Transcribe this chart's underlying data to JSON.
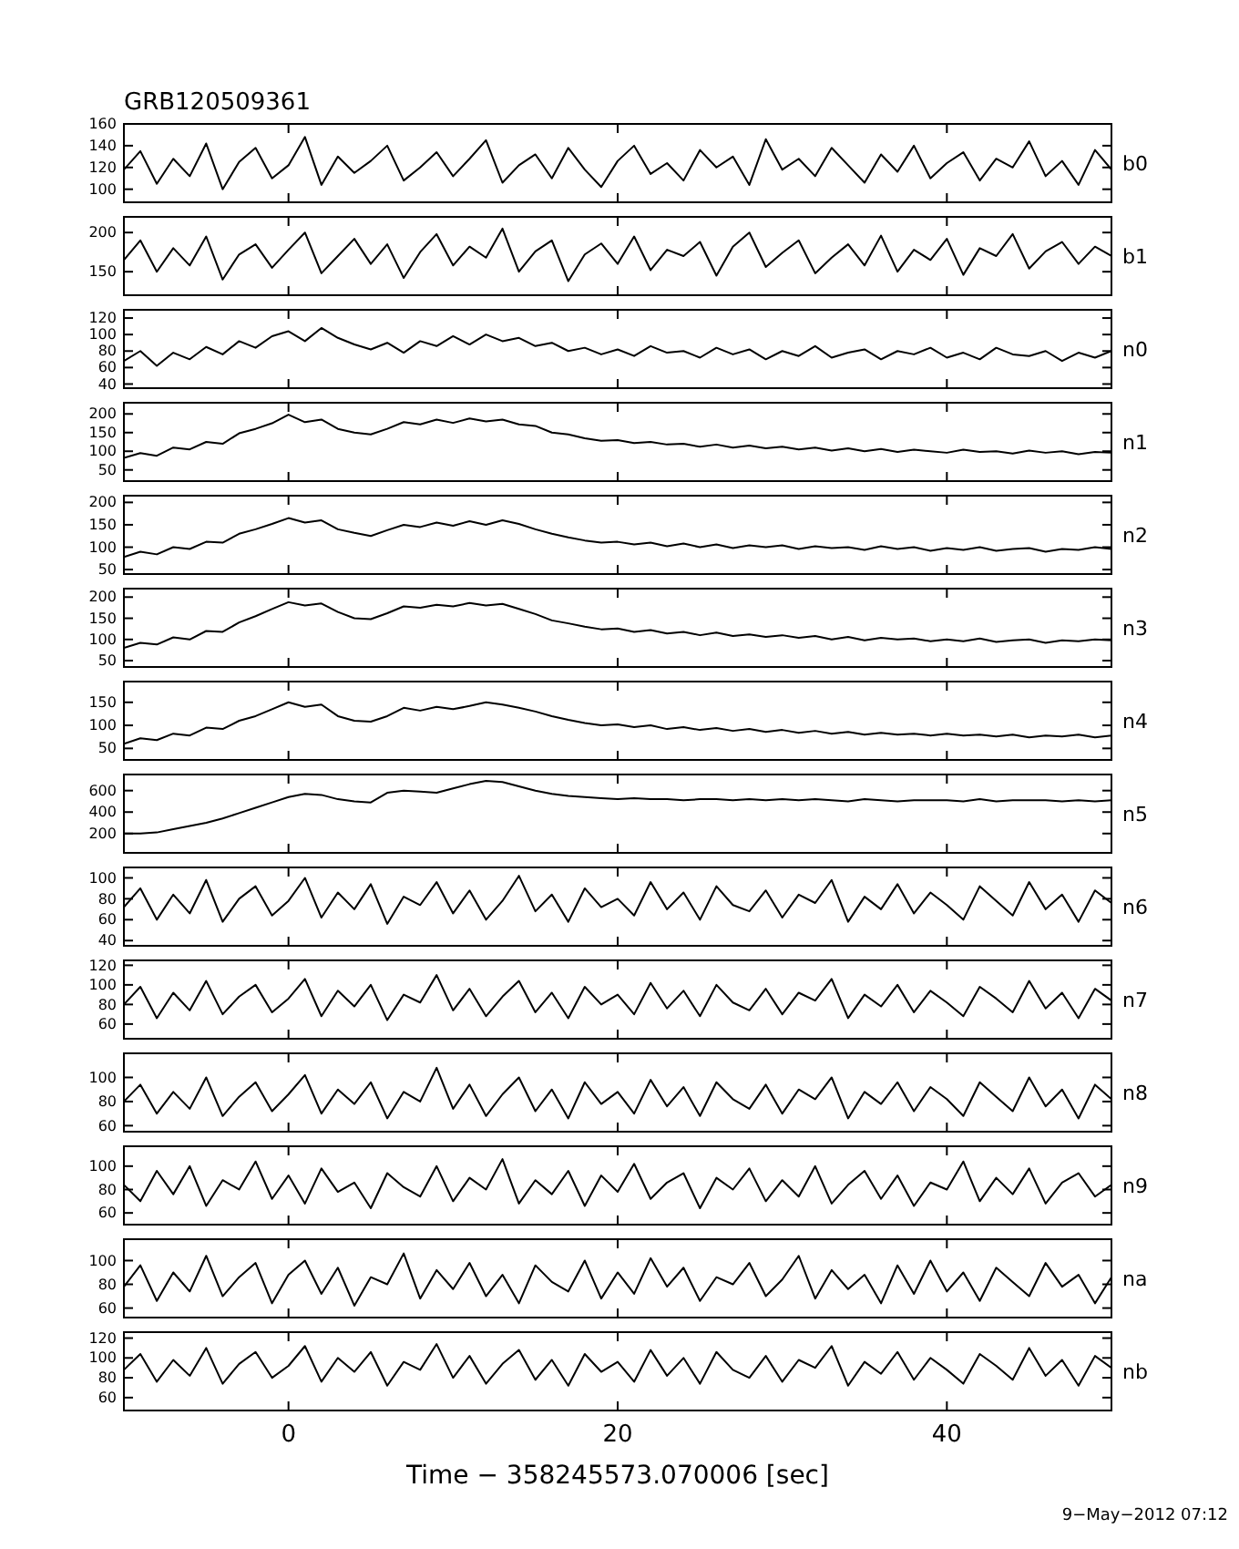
{
  "chart_data": [
    {
      "type": "line",
      "title": "GRB120509361",
      "x": [
        -10,
        -9,
        -8,
        -7,
        -6,
        -5,
        -4,
        -3,
        -2,
        -1,
        0,
        1,
        2,
        3,
        4,
        5,
        6,
        7,
        8,
        9,
        10,
        11,
        12,
        13,
        14,
        15,
        16,
        17,
        18,
        19,
        20,
        21,
        22,
        23,
        24,
        25,
        26,
        27,
        28,
        29,
        30,
        31,
        32,
        33,
        34,
        35,
        36,
        37,
        38,
        39,
        40,
        41,
        42,
        43,
        44,
        45,
        46,
        47,
        48,
        49,
        50
      ],
      "xlim": [
        -10,
        50
      ],
      "xticks": [
        0,
        20,
        40
      ],
      "ylim": [
        88,
        160
      ],
      "yticks": [
        100,
        120,
        140,
        160
      ],
      "tick_labels": "y",
      "series": [
        {
          "name": "b0",
          "color": "#000000",
          "values": [
            118,
            135,
            105,
            128,
            112,
            142,
            100,
            125,
            138,
            110,
            122,
            148,
            104,
            130,
            115,
            126,
            140,
            108,
            120,
            134,
            112,
            128,
            145,
            106,
            122,
            132,
            110,
            138,
            118,
            102,
            126,
            140,
            114,
            124,
            108,
            136,
            120,
            130,
            104,
            146,
            118,
            128,
            112,
            138,
            122,
            106,
            132,
            116,
            140,
            110,
            124,
            134,
            108,
            128,
            120,
            144,
            112,
            126,
            104,
            136,
            118
          ]
        }
      ]
    },
    {
      "type": "line",
      "x": [
        -10,
        -9,
        -8,
        -7,
        -6,
        -5,
        -4,
        -3,
        -2,
        -1,
        0,
        1,
        2,
        3,
        4,
        5,
        6,
        7,
        8,
        9,
        10,
        11,
        12,
        13,
        14,
        15,
        16,
        17,
        18,
        19,
        20,
        21,
        22,
        23,
        24,
        25,
        26,
        27,
        28,
        29,
        30,
        31,
        32,
        33,
        34,
        35,
        36,
        37,
        38,
        39,
        40,
        41,
        42,
        43,
        44,
        45,
        46,
        47,
        48,
        49,
        50
      ],
      "xlim": [
        -10,
        50
      ],
      "xticks": [
        0,
        20,
        40
      ],
      "ylim": [
        120,
        220
      ],
      "yticks": [
        150,
        200
      ],
      "tick_labels": "y",
      "series": [
        {
          "name": "b1",
          "color": "#000000",
          "values": [
            165,
            190,
            150,
            180,
            158,
            195,
            140,
            172,
            185,
            155,
            178,
            200,
            148,
            170,
            192,
            160,
            185,
            142,
            175,
            198,
            158,
            182,
            168,
            205,
            150,
            176,
            190,
            138,
            172,
            186,
            160,
            195,
            152,
            178,
            170,
            188,
            145,
            182,
            200,
            156,
            174,
            190,
            148,
            168,
            185,
            158,
            196,
            150,
            178,
            165,
            192,
            146,
            180,
            170,
            198,
            154,
            176,
            188,
            160,
            182,
            170
          ]
        }
      ]
    },
    {
      "type": "line",
      "x": [
        -10,
        -9,
        -8,
        -7,
        -6,
        -5,
        -4,
        -3,
        -2,
        -1,
        0,
        1,
        2,
        3,
        4,
        5,
        6,
        7,
        8,
        9,
        10,
        11,
        12,
        13,
        14,
        15,
        16,
        17,
        18,
        19,
        20,
        21,
        22,
        23,
        24,
        25,
        26,
        27,
        28,
        29,
        30,
        31,
        32,
        33,
        34,
        35,
        36,
        37,
        38,
        39,
        40,
        41,
        42,
        43,
        44,
        45,
        46,
        47,
        48,
        49,
        50
      ],
      "xlim": [
        -10,
        50
      ],
      "xticks": [
        0,
        20,
        40
      ],
      "ylim": [
        35,
        130
      ],
      "yticks": [
        40,
        60,
        80,
        100,
        120
      ],
      "tick_labels": "y",
      "series": [
        {
          "name": "n0",
          "color": "#000000",
          "values": [
            68,
            80,
            62,
            78,
            70,
            85,
            76,
            92,
            84,
            98,
            104,
            92,
            108,
            96,
            88,
            82,
            90,
            78,
            92,
            86,
            98,
            88,
            100,
            92,
            96,
            86,
            90,
            80,
            84,
            76,
            82,
            74,
            86,
            78,
            80,
            72,
            84,
            76,
            82,
            70,
            80,
            74,
            86,
            72,
            78,
            82,
            70,
            80,
            76,
            84,
            72,
            78,
            70,
            84,
            76,
            74,
            80,
            68,
            78,
            72,
            80
          ]
        }
      ]
    },
    {
      "type": "line",
      "x": [
        -10,
        -9,
        -8,
        -7,
        -6,
        -5,
        -4,
        -3,
        -2,
        -1,
        0,
        1,
        2,
        3,
        4,
        5,
        6,
        7,
        8,
        9,
        10,
        11,
        12,
        13,
        14,
        15,
        16,
        17,
        18,
        19,
        20,
        21,
        22,
        23,
        24,
        25,
        26,
        27,
        28,
        29,
        30,
        31,
        32,
        33,
        34,
        35,
        36,
        37,
        38,
        39,
        40,
        41,
        42,
        43,
        44,
        45,
        46,
        47,
        48,
        49,
        50
      ],
      "xlim": [
        -10,
        50
      ],
      "xticks": [
        0,
        20,
        40
      ],
      "ylim": [
        20,
        230
      ],
      "yticks": [
        50,
        100,
        150,
        200
      ],
      "tick_labels": "y",
      "series": [
        {
          "name": "n1",
          "color": "#000000",
          "values": [
            82,
            95,
            88,
            110,
            105,
            125,
            120,
            148,
            160,
            175,
            198,
            178,
            185,
            160,
            150,
            145,
            160,
            178,
            172,
            185,
            176,
            188,
            180,
            185,
            172,
            168,
            150,
            145,
            135,
            128,
            130,
            122,
            125,
            118,
            120,
            112,
            118,
            110,
            115,
            108,
            112,
            105,
            110,
            102,
            108,
            100,
            106,
            98,
            104,
            100,
            96,
            104,
            98,
            100,
            94,
            102,
            96,
            100,
            92,
            98,
            96
          ]
        }
      ]
    },
    {
      "type": "line",
      "x": [
        -10,
        -9,
        -8,
        -7,
        -6,
        -5,
        -4,
        -3,
        -2,
        -1,
        0,
        1,
        2,
        3,
        4,
        5,
        6,
        7,
        8,
        9,
        10,
        11,
        12,
        13,
        14,
        15,
        16,
        17,
        18,
        19,
        20,
        21,
        22,
        23,
        24,
        25,
        26,
        27,
        28,
        29,
        30,
        31,
        32,
        33,
        34,
        35,
        36,
        37,
        38,
        39,
        40,
        41,
        42,
        43,
        44,
        45,
        46,
        47,
        48,
        49,
        50
      ],
      "xlim": [
        -10,
        50
      ],
      "xticks": [
        0,
        20,
        40
      ],
      "ylim": [
        40,
        215
      ],
      "yticks": [
        50,
        100,
        150,
        200
      ],
      "tick_labels": "y",
      "series": [
        {
          "name": "n2",
          "color": "#000000",
          "values": [
            78,
            90,
            84,
            100,
            96,
            112,
            110,
            130,
            140,
            152,
            165,
            155,
            160,
            140,
            132,
            125,
            138,
            150,
            145,
            155,
            148,
            158,
            150,
            160,
            152,
            140,
            130,
            122,
            115,
            110,
            112,
            106,
            110,
            102,
            108,
            100,
            106,
            98,
            104,
            100,
            104,
            96,
            102,
            98,
            100,
            94,
            102,
            96,
            100,
            92,
            98,
            94,
            100,
            92,
            96,
            98,
            90,
            96,
            94,
            100,
            96
          ]
        }
      ]
    },
    {
      "type": "line",
      "x": [
        -10,
        -9,
        -8,
        -7,
        -6,
        -5,
        -4,
        -3,
        -2,
        -1,
        0,
        1,
        2,
        3,
        4,
        5,
        6,
        7,
        8,
        9,
        10,
        11,
        12,
        13,
        14,
        15,
        16,
        17,
        18,
        19,
        20,
        21,
        22,
        23,
        24,
        25,
        26,
        27,
        28,
        29,
        30,
        31,
        32,
        33,
        34,
        35,
        36,
        37,
        38,
        39,
        40,
        41,
        42,
        43,
        44,
        45,
        46,
        47,
        48,
        49,
        50
      ],
      "xlim": [
        -10,
        50
      ],
      "xticks": [
        0,
        20,
        40
      ],
      "ylim": [
        35,
        220
      ],
      "yticks": [
        50,
        100,
        150,
        200
      ],
      "tick_labels": "y",
      "series": [
        {
          "name": "n3",
          "color": "#000000",
          "values": [
            80,
            92,
            88,
            105,
            100,
            120,
            118,
            140,
            155,
            172,
            188,
            180,
            185,
            165,
            150,
            148,
            162,
            178,
            175,
            182,
            178,
            186,
            180,
            184,
            172,
            160,
            145,
            138,
            130,
            124,
            126,
            118,
            122,
            114,
            118,
            110,
            116,
            108,
            112,
            106,
            110,
            104,
            108,
            100,
            106,
            98,
            104,
            100,
            102,
            96,
            100,
            96,
            102,
            94,
            98,
            100,
            92,
            98,
            96,
            100,
            98
          ]
        }
      ]
    },
    {
      "type": "line",
      "x": [
        -10,
        -9,
        -8,
        -7,
        -6,
        -5,
        -4,
        -3,
        -2,
        -1,
        0,
        1,
        2,
        3,
        4,
        5,
        6,
        7,
        8,
        9,
        10,
        11,
        12,
        13,
        14,
        15,
        16,
        17,
        18,
        19,
        20,
        21,
        22,
        23,
        24,
        25,
        26,
        27,
        28,
        29,
        30,
        31,
        32,
        33,
        34,
        35,
        36,
        37,
        38,
        39,
        40,
        41,
        42,
        43,
        44,
        45,
        46,
        47,
        48,
        49,
        50
      ],
      "xlim": [
        -10,
        50
      ],
      "xticks": [
        0,
        20,
        40
      ],
      "ylim": [
        25,
        195
      ],
      "yticks": [
        50,
        100,
        150
      ],
      "tick_labels": "y",
      "series": [
        {
          "name": "n4",
          "color": "#000000",
          "values": [
            60,
            72,
            68,
            82,
            78,
            95,
            92,
            110,
            120,
            135,
            150,
            140,
            145,
            120,
            110,
            108,
            120,
            138,
            132,
            140,
            135,
            142,
            150,
            145,
            138,
            130,
            120,
            112,
            105,
            100,
            102,
            96,
            100,
            92,
            96,
            90,
            94,
            88,
            92,
            86,
            90,
            84,
            88,
            82,
            86,
            80,
            84,
            80,
            82,
            78,
            82,
            78,
            80,
            76,
            80,
            74,
            78,
            76,
            80,
            74,
            78
          ]
        }
      ]
    },
    {
      "type": "line",
      "x": [
        -10,
        -9,
        -8,
        -7,
        -6,
        -5,
        -4,
        -3,
        -2,
        -1,
        0,
        1,
        2,
        3,
        4,
        5,
        6,
        7,
        8,
        9,
        10,
        11,
        12,
        13,
        14,
        15,
        16,
        17,
        18,
        19,
        20,
        21,
        22,
        23,
        24,
        25,
        26,
        27,
        28,
        29,
        30,
        31,
        32,
        33,
        34,
        35,
        36,
        37,
        38,
        39,
        40,
        41,
        42,
        43,
        44,
        45,
        46,
        47,
        48,
        49,
        50
      ],
      "xlim": [
        -10,
        50
      ],
      "xticks": [
        0,
        20,
        40
      ],
      "ylim": [
        20,
        750
      ],
      "yticks": [
        200,
        400,
        600
      ],
      "tick_labels": "y",
      "series": [
        {
          "name": "n5",
          "color": "#000000",
          "values": [
            200,
            200,
            210,
            240,
            270,
            300,
            340,
            390,
            440,
            490,
            540,
            570,
            560,
            520,
            500,
            490,
            580,
            600,
            590,
            580,
            620,
            660,
            690,
            680,
            640,
            600,
            570,
            550,
            540,
            530,
            520,
            530,
            520,
            520,
            510,
            520,
            520,
            510,
            520,
            510,
            520,
            510,
            520,
            510,
            500,
            520,
            510,
            500,
            510,
            510,
            510,
            500,
            520,
            500,
            510,
            510,
            510,
            500,
            510,
            500,
            510
          ]
        }
      ]
    },
    {
      "type": "line",
      "x": [
        -10,
        -9,
        -8,
        -7,
        -6,
        -5,
        -4,
        -3,
        -2,
        -1,
        0,
        1,
        2,
        3,
        4,
        5,
        6,
        7,
        8,
        9,
        10,
        11,
        12,
        13,
        14,
        15,
        16,
        17,
        18,
        19,
        20,
        21,
        22,
        23,
        24,
        25,
        26,
        27,
        28,
        29,
        30,
        31,
        32,
        33,
        34,
        35,
        36,
        37,
        38,
        39,
        40,
        41,
        42,
        43,
        44,
        45,
        46,
        47,
        48,
        49,
        50
      ],
      "xlim": [
        -10,
        50
      ],
      "xticks": [
        0,
        20,
        40
      ],
      "ylim": [
        35,
        110
      ],
      "yticks": [
        40,
        60,
        80,
        100
      ],
      "tick_labels": "y",
      "series": [
        {
          "name": "n6",
          "color": "#000000",
          "values": [
            72,
            90,
            60,
            84,
            66,
            98,
            58,
            80,
            92,
            64,
            78,
            100,
            62,
            86,
            70,
            94,
            56,
            82,
            74,
            96,
            66,
            88,
            60,
            78,
            102,
            68,
            84,
            58,
            90,
            72,
            80,
            64,
            96,
            70,
            86,
            60,
            92,
            74,
            68,
            88,
            62,
            84,
            76,
            98,
            58,
            82,
            70,
            94,
            66,
            86,
            74,
            60,
            92,
            78,
            64,
            96,
            70,
            84,
            58,
            88,
            76
          ]
        }
      ]
    },
    {
      "type": "line",
      "x": [
        -10,
        -9,
        -8,
        -7,
        -6,
        -5,
        -4,
        -3,
        -2,
        -1,
        0,
        1,
        2,
        3,
        4,
        5,
        6,
        7,
        8,
        9,
        10,
        11,
        12,
        13,
        14,
        15,
        16,
        17,
        18,
        19,
        20,
        21,
        22,
        23,
        24,
        25,
        26,
        27,
        28,
        29,
        30,
        31,
        32,
        33,
        34,
        35,
        36,
        37,
        38,
        39,
        40,
        41,
        42,
        43,
        44,
        45,
        46,
        47,
        48,
        49,
        50
      ],
      "xlim": [
        -10,
        50
      ],
      "xticks": [
        0,
        20,
        40
      ],
      "ylim": [
        45,
        125
      ],
      "yticks": [
        60,
        80,
        100,
        120
      ],
      "tick_labels": "y",
      "series": [
        {
          "name": "n7",
          "color": "#000000",
          "values": [
            80,
            98,
            66,
            92,
            74,
            104,
            70,
            88,
            100,
            72,
            86,
            106,
            68,
            94,
            78,
            100,
            64,
            90,
            82,
            110,
            74,
            96,
            68,
            88,
            104,
            72,
            92,
            66,
            98,
            80,
            90,
            70,
            102,
            76,
            94,
            68,
            100,
            82,
            74,
            96,
            70,
            92,
            84,
            106,
            66,
            90,
            78,
            100,
            72,
            94,
            82,
            68,
            98,
            86,
            72,
            104,
            76,
            92,
            66,
            96,
            84
          ]
        }
      ]
    },
    {
      "type": "line",
      "x": [
        -10,
        -9,
        -8,
        -7,
        -6,
        -5,
        -4,
        -3,
        -2,
        -1,
        0,
        1,
        2,
        3,
        4,
        5,
        6,
        7,
        8,
        9,
        10,
        11,
        12,
        13,
        14,
        15,
        16,
        17,
        18,
        19,
        20,
        21,
        22,
        23,
        24,
        25,
        26,
        27,
        28,
        29,
        30,
        31,
        32,
        33,
        34,
        35,
        36,
        37,
        38,
        39,
        40,
        41,
        42,
        43,
        44,
        45,
        46,
        47,
        48,
        49,
        50
      ],
      "xlim": [
        -10,
        50
      ],
      "xticks": [
        0,
        20,
        40
      ],
      "ylim": [
        55,
        120
      ],
      "yticks": [
        60,
        80,
        100
      ],
      "tick_labels": "y",
      "series": [
        {
          "name": "n8",
          "color": "#000000",
          "values": [
            80,
            94,
            70,
            88,
            74,
            100,
            68,
            84,
            96,
            72,
            86,
            102,
            70,
            90,
            78,
            96,
            66,
            88,
            80,
            108,
            74,
            94,
            68,
            86,
            100,
            72,
            90,
            66,
            96,
            78,
            88,
            70,
            98,
            76,
            92,
            68,
            96,
            82,
            74,
            94,
            70,
            90,
            82,
            100,
            66,
            88,
            78,
            96,
            72,
            92,
            82,
            68,
            96,
            84,
            72,
            100,
            76,
            90,
            66,
            94,
            82
          ]
        }
      ]
    },
    {
      "type": "line",
      "x": [
        -10,
        -9,
        -8,
        -7,
        -6,
        -5,
        -4,
        -3,
        -2,
        -1,
        0,
        1,
        2,
        3,
        4,
        5,
        6,
        7,
        8,
        9,
        10,
        11,
        12,
        13,
        14,
        15,
        16,
        17,
        18,
        19,
        20,
        21,
        22,
        23,
        24,
        25,
        26,
        27,
        28,
        29,
        30,
        31,
        32,
        33,
        34,
        35,
        36,
        37,
        38,
        39,
        40,
        41,
        42,
        43,
        44,
        45,
        46,
        47,
        48,
        49,
        50
      ],
      "xlim": [
        -10,
        50
      ],
      "xticks": [
        0,
        20,
        40
      ],
      "ylim": [
        50,
        117
      ],
      "yticks": [
        60,
        80,
        100
      ],
      "tick_labels": "y",
      "series": [
        {
          "name": "n9",
          "color": "#000000",
          "values": [
            84,
            70,
            96,
            76,
            100,
            66,
            88,
            80,
            104,
            72,
            92,
            68,
            98,
            78,
            86,
            64,
            94,
            82,
            74,
            100,
            70,
            90,
            80,
            106,
            68,
            88,
            76,
            96,
            66,
            92,
            78,
            102,
            72,
            86,
            94,
            64,
            90,
            80,
            98,
            70,
            88,
            74,
            100,
            68,
            84,
            96,
            72,
            92,
            66,
            86,
            80,
            104,
            70,
            90,
            76,
            98,
            68,
            86,
            94,
            74,
            84
          ]
        }
      ]
    },
    {
      "type": "line",
      "x": [
        -10,
        -9,
        -8,
        -7,
        -6,
        -5,
        -4,
        -3,
        -2,
        -1,
        0,
        1,
        2,
        3,
        4,
        5,
        6,
        7,
        8,
        9,
        10,
        11,
        12,
        13,
        14,
        15,
        16,
        17,
        18,
        19,
        20,
        21,
        22,
        23,
        24,
        25,
        26,
        27,
        28,
        29,
        30,
        31,
        32,
        33,
        34,
        35,
        36,
        37,
        38,
        39,
        40,
        41,
        42,
        43,
        44,
        45,
        46,
        47,
        48,
        49,
        50
      ],
      "xlim": [
        -10,
        50
      ],
      "xticks": [
        0,
        20,
        40
      ],
      "ylim": [
        52,
        118
      ],
      "yticks": [
        60,
        80,
        100
      ],
      "tick_labels": "y",
      "series": [
        {
          "name": "na",
          "color": "#000000",
          "values": [
            78,
            96,
            66,
            90,
            74,
            104,
            70,
            86,
            98,
            64,
            88,
            100,
            72,
            94,
            62,
            86,
            80,
            106,
            68,
            92,
            76,
            98,
            70,
            88,
            64,
            96,
            82,
            74,
            100,
            68,
            90,
            72,
            102,
            78,
            94,
            66,
            86,
            80,
            98,
            70,
            84,
            104,
            68,
            92,
            76,
            88,
            64,
            96,
            72,
            100,
            74,
            90,
            66,
            94,
            82,
            70,
            98,
            78,
            88,
            64,
            86
          ]
        }
      ]
    },
    {
      "type": "line",
      "xlabel": "Time − 358245573.070006 [sec]",
      "annotations": [
        "9−May−2012 07:12"
      ],
      "x": [
        -10,
        -9,
        -8,
        -7,
        -6,
        -5,
        -4,
        -3,
        -2,
        -1,
        0,
        1,
        2,
        3,
        4,
        5,
        6,
        7,
        8,
        9,
        10,
        11,
        12,
        13,
        14,
        15,
        16,
        17,
        18,
        19,
        20,
        21,
        22,
        23,
        24,
        25,
        26,
        27,
        28,
        29,
        30,
        31,
        32,
        33,
        34,
        35,
        36,
        37,
        38,
        39,
        40,
        41,
        42,
        43,
        44,
        45,
        46,
        47,
        48,
        49,
        50
      ],
      "xlim": [
        -10,
        50
      ],
      "xticks": [
        0,
        20,
        40
      ],
      "ylim": [
        47,
        126
      ],
      "yticks": [
        60,
        80,
        100,
        120
      ],
      "series": [
        {
          "name": "nb",
          "color": "#000000",
          "values": [
            88,
            104,
            76,
            98,
            82,
            110,
            74,
            94,
            106,
            80,
            92,
            112,
            76,
            100,
            86,
            106,
            72,
            96,
            88,
            114,
            80,
            102,
            74,
            94,
            108,
            78,
            98,
            72,
            104,
            86,
            96,
            76,
            108,
            82,
            100,
            74,
            106,
            88,
            80,
            102,
            76,
            98,
            90,
            112,
            72,
            96,
            84,
            106,
            78,
            100,
            88,
            74,
            104,
            92,
            78,
            110,
            82,
            98,
            72,
            102,
            90
          ]
        }
      ]
    }
  ]
}
